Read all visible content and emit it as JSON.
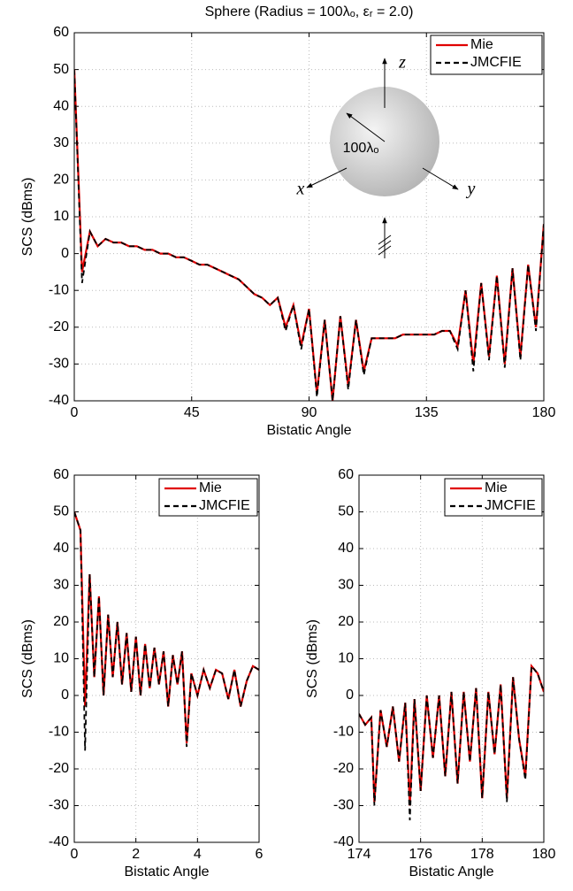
{
  "chart_data": [
    {
      "type": "line",
      "title": "Sphere (Radius = 100λₒ, εᵣ = 2.0)",
      "x_label": "Bistatic Angle",
      "y_label": "SCS (dBms)",
      "annotations": [
        "z",
        "x",
        "y",
        "100λₒ"
      ],
      "x": [
        0,
        3,
        6,
        9,
        12,
        15,
        18,
        21,
        24,
        27,
        30,
        33,
        36,
        39,
        42,
        45,
        48,
        51,
        54,
        57,
        60,
        63,
        66,
        69,
        72,
        75,
        78,
        81,
        84,
        87,
        90,
        93,
        96,
        99,
        102,
        105,
        108,
        111,
        114,
        117,
        120,
        123,
        126,
        129,
        132,
        135,
        138,
        141,
        144,
        147,
        150,
        153,
        156,
        159,
        162,
        165,
        168,
        171,
        174,
        177,
        180
      ],
      "series": [
        {
          "name": "Mie",
          "color": "#e00000",
          "values": [
            50,
            -5,
            6,
            2,
            4,
            3,
            3,
            2,
            2,
            1,
            1,
            0,
            0,
            -1,
            -1,
            -2,
            -3,
            -3,
            -4,
            -5,
            -6,
            -7,
            -9,
            -11,
            -12,
            -14,
            -12,
            -20,
            -14,
            -25,
            -15,
            -38,
            -18,
            -40,
            -17,
            -36,
            -18,
            -32,
            -23,
            -23,
            -23,
            -23,
            -22,
            -22,
            -22,
            -22,
            -22,
            -21,
            -21,
            -25,
            -10,
            -30,
            -8,
            -28,
            -6,
            -30,
            -4,
            -28,
            -3,
            -20,
            8
          ]
        },
        {
          "name": "JMCFIE",
          "color": "#000000",
          "values": [
            50,
            -8,
            6,
            2,
            4,
            3,
            3,
            2,
            2,
            1,
            1,
            0,
            0,
            -1,
            -1,
            -2,
            -3,
            -3,
            -4,
            -5,
            -6,
            -7,
            -9,
            -11,
            -12,
            -14,
            -12,
            -21,
            -14,
            -26,
            -15,
            -39,
            -18,
            -40,
            -17,
            -37,
            -18,
            -33,
            -23,
            -23,
            -23,
            -23,
            -22,
            -22,
            -22,
            -22,
            -22,
            -21,
            -21,
            -26,
            -10,
            -32,
            -8,
            -29,
            -6,
            -31,
            -4,
            -29,
            -3,
            -21,
            8
          ]
        }
      ],
      "xlim": [
        0,
        180
      ],
      "xticks": [
        0,
        45,
        90,
        135,
        180
      ],
      "ylim": [
        -40,
        60
      ],
      "yticks": [
        -40,
        -30,
        -20,
        -10,
        0,
        10,
        20,
        30,
        40,
        50,
        60
      ],
      "grid": true,
      "legend": "upper right"
    },
    {
      "type": "line",
      "x_label": "Bistatic Angle",
      "y_label": "SCS (dBms)",
      "x": [
        0,
        0.2,
        0.35,
        0.5,
        0.65,
        0.8,
        0.95,
        1.1,
        1.25,
        1.4,
        1.55,
        1.7,
        1.85,
        2.0,
        2.15,
        2.3,
        2.45,
        2.6,
        2.75,
        2.9,
        3.05,
        3.2,
        3.35,
        3.5,
        3.65,
        3.8,
        4.0,
        4.2,
        4.4,
        4.6,
        4.8,
        5.0,
        5.2,
        5.4,
        5.6,
        5.8,
        6.0
      ],
      "series": [
        {
          "name": "Mie",
          "color": "#e00000",
          "values": [
            50,
            45,
            -3,
            33,
            5,
            27,
            0,
            22,
            5,
            20,
            3,
            17,
            1,
            16,
            0,
            14,
            2,
            13,
            3,
            12,
            -3,
            11,
            3,
            12,
            -13,
            6,
            0,
            7,
            2,
            7,
            6,
            -1,
            7,
            -3,
            4,
            8,
            7
          ]
        },
        {
          "name": "JMCFIE",
          "color": "#000000",
          "values": [
            50,
            45,
            -15,
            33,
            5,
            27,
            0,
            22,
            5,
            20,
            3,
            17,
            1,
            16,
            0,
            14,
            2,
            13,
            3,
            12,
            -3,
            11,
            3,
            12,
            -14,
            6,
            0,
            7,
            2,
            7,
            6,
            -1,
            7,
            -3,
            4,
            8,
            7
          ]
        }
      ],
      "xlim": [
        0,
        6
      ],
      "xticks": [
        0,
        2,
        4,
        6
      ],
      "ylim": [
        -40,
        60
      ],
      "yticks": [
        -40,
        -30,
        -20,
        -10,
        0,
        10,
        20,
        30,
        40,
        50,
        60
      ],
      "grid": true,
      "legend": "upper right"
    },
    {
      "type": "line",
      "x_label": "Bistatic Angle",
      "y_label": "SCS (dBms)",
      "x": [
        174,
        174.2,
        174.4,
        174.5,
        174.7,
        174.9,
        175.1,
        175.3,
        175.5,
        175.65,
        175.8,
        176,
        176.2,
        176.4,
        176.6,
        176.8,
        177,
        177.2,
        177.4,
        177.6,
        177.8,
        178,
        178.2,
        178.4,
        178.6,
        178.8,
        179,
        179.2,
        179.4,
        179.6,
        179.8,
        180
      ],
      "series": [
        {
          "name": "Mie",
          "color": "#e00000",
          "values": [
            -5,
            -8,
            -6,
            -29,
            -4,
            -14,
            -3,
            -18,
            -2,
            -30,
            -1,
            -26,
            0,
            -17,
            0,
            -22,
            1,
            -24,
            1,
            -18,
            2,
            -28,
            1,
            -16,
            3,
            -28,
            5,
            -12,
            -22,
            8,
            6,
            1
          ]
        },
        {
          "name": "JMCFIE",
          "color": "#000000",
          "values": [
            -5,
            -8,
            -6,
            -30,
            -4,
            -14,
            -3,
            -18,
            -2,
            -34,
            -1,
            -26,
            0,
            -17,
            0,
            -22,
            1,
            -24,
            1,
            -18,
            2,
            -28,
            1,
            -16,
            3,
            -29,
            5,
            -12,
            -23,
            8,
            6,
            1
          ]
        }
      ],
      "xlim": [
        174,
        180
      ],
      "xticks": [
        174,
        176,
        178,
        180
      ],
      "ylim": [
        -40,
        60
      ],
      "yticks": [
        -40,
        -30,
        -20,
        -10,
        0,
        10,
        20,
        30,
        40,
        50,
        60
      ],
      "grid": true,
      "legend": "upper right"
    }
  ]
}
